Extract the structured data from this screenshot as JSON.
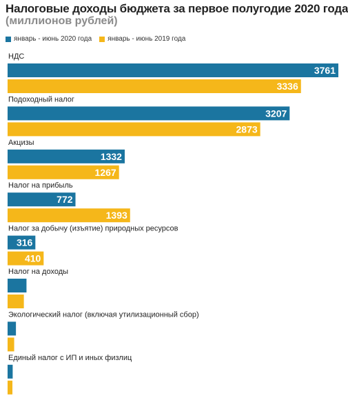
{
  "colors": {
    "s2020": "#1b75a0",
    "s2019": "#f5b71a",
    "label": "#ffffff"
  },
  "chart_data": {
    "type": "bar",
    "orientation": "horizontal",
    "title": "Налоговые доходы бюджета за первое полугодие 2020 года",
    "subtitle": "(миллионов рублей)",
    "legend_position": "top-left",
    "grid": false,
    "categories": [
      "НДС",
      "Подоходный налог",
      "Акцизы",
      "Налог на прибыль",
      "Налог за добычу (изъятие) природных ресурсов",
      "Налог на доходы",
      "Экологический налог (включая утилизационный сбор)",
      "Единый налог с ИП и иных физлиц"
    ],
    "series": [
      {
        "name": "январь - июнь 2020 года",
        "values": [
          3761,
          3207,
          1332,
          772,
          316,
          215,
          95,
          58
        ]
      },
      {
        "name": "январь - июнь 2019 года",
        "values": [
          3336,
          2873,
          1267,
          1393,
          410,
          185,
          75,
          55
        ]
      }
    ],
    "value_labels": [
      [
        "3761",
        "3207",
        "1332",
        "772",
        "316",
        "",
        "",
        ""
      ],
      [
        "3336",
        "2873",
        "1267",
        "1393",
        "410",
        "",
        "",
        ""
      ]
    ],
    "xlim": [
      0,
      3761
    ]
  }
}
